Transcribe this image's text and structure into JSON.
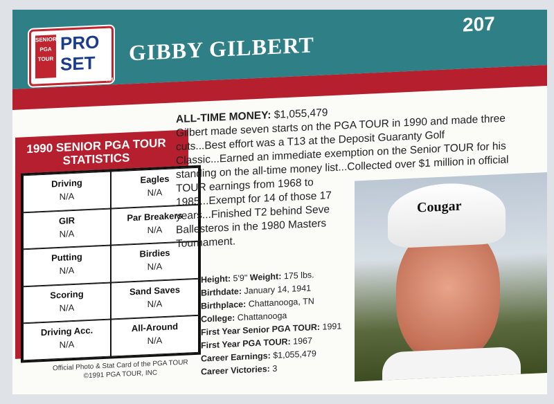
{
  "card": {
    "brand": {
      "line1": "PRO",
      "line2": "SET",
      "side_text": "SENIOR PGA TOUR",
      "tm": "TM"
    },
    "player_name": "GIBBY GILBERT",
    "card_number": "207",
    "stats": {
      "title": "1990 SENIOR PGA TOUR STATISTICS",
      "cells": [
        {
          "label": "Driving",
          "value": "N/A"
        },
        {
          "label": "Eagles",
          "value": "N/A"
        },
        {
          "label": "GIR",
          "value": "N/A"
        },
        {
          "label": "Par Breakers",
          "value": "N/A"
        },
        {
          "label": "Putting",
          "value": "N/A"
        },
        {
          "label": "Birdies",
          "value": "N/A"
        },
        {
          "label": "Scoring",
          "value": "N/A"
        },
        {
          "label": "Sand Saves",
          "value": "N/A"
        },
        {
          "label": "Driving Acc.",
          "value": "N/A"
        },
        {
          "label": "All-Around",
          "value": "N/A"
        }
      ]
    },
    "all_time_money_label": "ALL-TIME MONEY:",
    "all_time_money_value": "$1,055,479",
    "bio": "Gilbert made seven starts on the PGA TOUR in 1990 and made three cuts...Best effort was a T13 at the Deposit Guaranty Golf Classic...Earned an immediate exemption on the Senior TOUR for his standing on the all-time money list...Collected over $1 million in official TOUR earnings from 1968 to 1985...Exempt for 14 of those 17 years...Finished T2 behind Seve Ballesteros in the 1980 Masters Tournament.",
    "facts": [
      {
        "label": "Height:",
        "value": "5'9\""
      },
      {
        "label": "Weight:",
        "value": "175 lbs."
      },
      {
        "label": "Birthdate:",
        "value": "January 14, 1941"
      },
      {
        "label": "Birthplace:",
        "value": "Chattanooga, TN"
      },
      {
        "label": "College:",
        "value": "Chattanooga"
      },
      {
        "label": "First Year Senior PGA TOUR:",
        "value": "1991"
      },
      {
        "label": "First Year PGA TOUR:",
        "value": "1967"
      },
      {
        "label": "Career Earnings:",
        "value": "$1,055,479"
      },
      {
        "label": "Career Victories:",
        "value": "3"
      }
    ],
    "photo_cap_text": "Cougar",
    "footer_line1": "Official Photo & Stat Card of the PGA TOUR",
    "footer_line2": "©1991 PGA TOUR, INC",
    "colors": {
      "teal": "#2f7f86",
      "red": "#b51f2e",
      "navy": "#1a3c8c"
    }
  }
}
